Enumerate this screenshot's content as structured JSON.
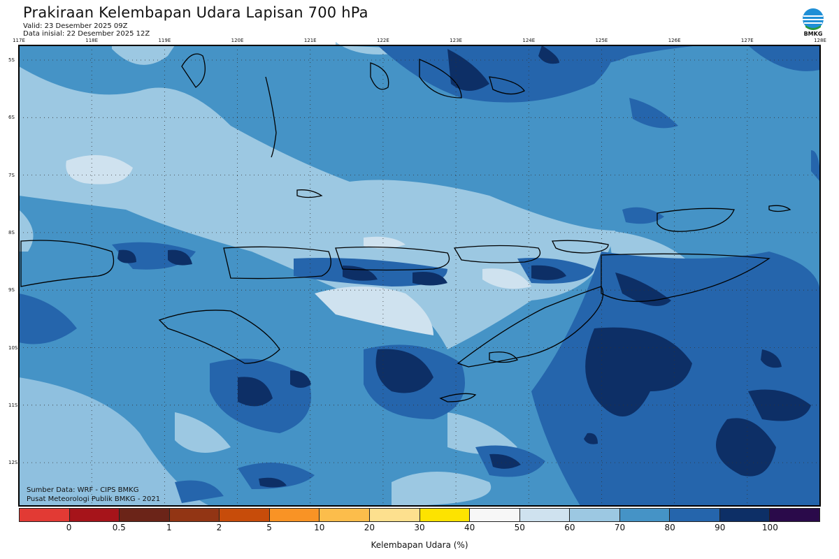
{
  "header": {
    "title": "Prakiraan Kelembapan Udara Lapisan 700 hPa",
    "valid": "Valid: 23 Desember 2025 09Z",
    "init": "Data inisial: 22 Desember 2025 12Z"
  },
  "logo": {
    "icon": "bmkg-logo-icon",
    "text": "BMKG"
  },
  "axes": {
    "lon_labels": [
      "117E",
      "118E",
      "119E",
      "120E",
      "121E",
      "122E",
      "123E",
      "124E",
      "125E",
      "126E",
      "127E",
      "128E"
    ],
    "lat_labels": [
      "5S",
      "6S",
      "7S",
      "8S",
      "9S",
      "10S",
      "11S",
      "12S"
    ]
  },
  "credits": {
    "source": "Sumber Data: WRF - CIPS BMKG",
    "center": "Pusat Meteorologi Publik BMKG - 2021"
  },
  "legend": {
    "ticks": [
      "0",
      "0.5",
      "1",
      "2",
      "5",
      "10",
      "20",
      "30",
      "40",
      "50",
      "60",
      "70",
      "80",
      "90",
      "100"
    ],
    "colors": [
      "#e23a34",
      "#a6141a",
      "#6b2418",
      "#923514",
      "#c74c0a",
      "#f99325",
      "#fcbd4b",
      "#fde08e",
      "#fde300",
      "#f7f7f7",
      "#cfe2ef",
      "#9cc8e2",
      "#4593c6",
      "#2565ac",
      "#0d2f66",
      "#2a0a4a"
    ],
    "unit": "Kelembapan Udara (%)"
  },
  "map_colors": {
    "c60_70": "#cfe2ef",
    "c70_80": "#9cc8e2",
    "c80_90": "#4593c6",
    "c90_95": "#2565ac",
    "c95_100": "#0d2f66",
    "coast": "#000000"
  }
}
